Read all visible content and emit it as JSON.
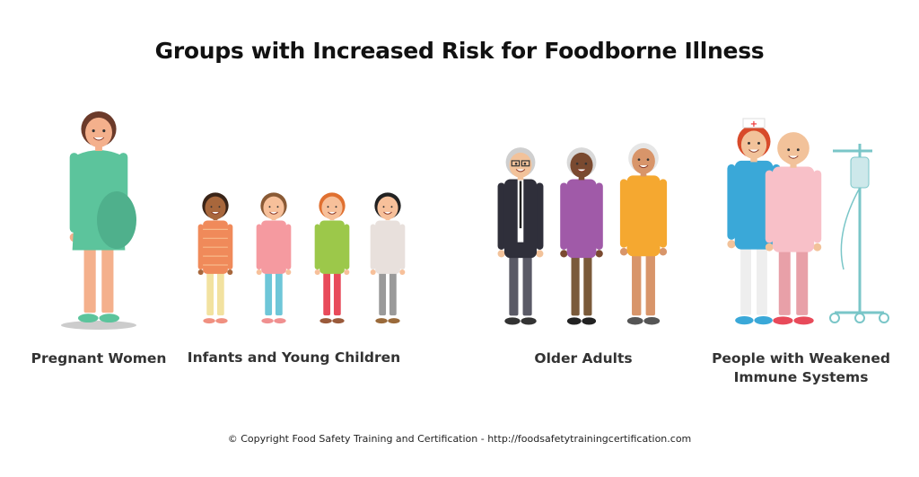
{
  "title": "Groups with Increased Risk for Foodborne Illness",
  "groups": [
    {
      "label": "Pregnant Women"
    },
    {
      "label": "Infants and Young Children"
    },
    {
      "label": "Older Adults"
    },
    {
      "label": "People with Weakened",
      "label2": "Immune Systems"
    }
  ],
  "footer": "© Copyright Food Safety Training and Certification - http://foodsafetytrainingcertification.com",
  "icons": [
    "pregnant-woman-illustration",
    "child-illustration",
    "older-adult-illustration",
    "nurse-illustration",
    "patient-illustration",
    "iv-drip-stand-illustration"
  ]
}
